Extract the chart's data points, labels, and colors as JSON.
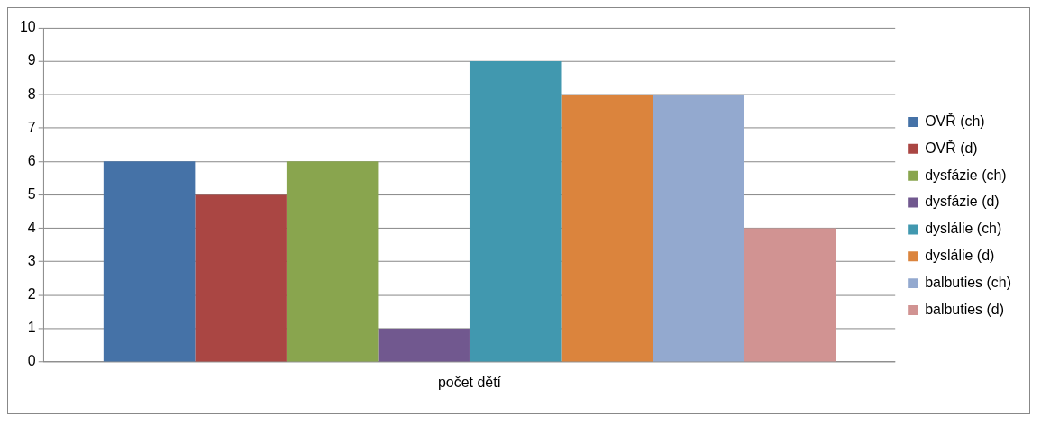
{
  "chart_data": {
    "type": "bar",
    "categories": [
      "počet dětí"
    ],
    "series": [
      {
        "name": "OVŘ (ch)",
        "color": "#4572a7",
        "values": [
          6
        ]
      },
      {
        "name": "OVŘ (d)",
        "color": "#aa4643",
        "values": [
          5
        ]
      },
      {
        "name": "dysfázie (ch)",
        "color": "#89a54e",
        "values": [
          6
        ]
      },
      {
        "name": "dysfázie (d)",
        "color": "#71588f",
        "values": [
          1
        ]
      },
      {
        "name": "dyslálie (ch)",
        "color": "#4198af",
        "values": [
          9
        ]
      },
      {
        "name": "dyslálie (d)",
        "color": "#db843d",
        "values": [
          8
        ]
      },
      {
        "name": "balbuties (ch)",
        "color": "#93a9cf",
        "values": [
          8
        ]
      },
      {
        "name": "balbuties (d)",
        "color": "#d19392",
        "values": [
          4
        ]
      }
    ],
    "ylim": [
      0,
      10
    ],
    "yticks": [
      0,
      1,
      2,
      3,
      4,
      5,
      6,
      7,
      8,
      9,
      10
    ],
    "grid": "y",
    "legend": "right"
  }
}
